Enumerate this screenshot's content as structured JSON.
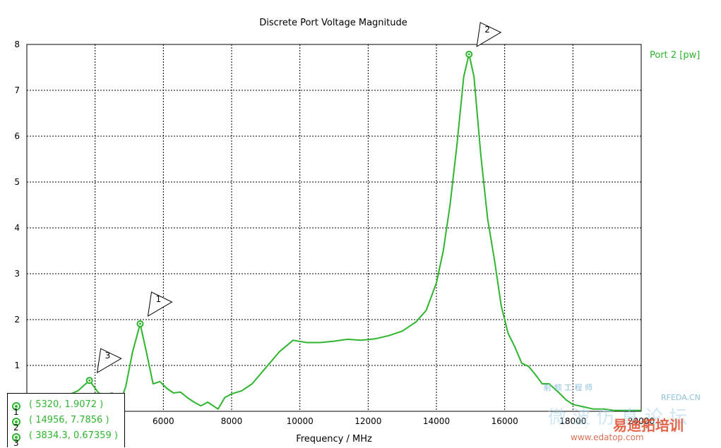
{
  "chart_data": {
    "type": "line",
    "title": "Discrete Port Voltage Magnitude",
    "xlabel": "Frequency / MHz",
    "ylabel": "",
    "xlim": [
      2000,
      20000
    ],
    "ylim": [
      0,
      8
    ],
    "x_ticks": [
      "4000",
      "6000",
      "8000",
      "10000",
      "12000",
      "14000",
      "16000",
      "18000",
      "20000"
    ],
    "y_ticks": [
      "1",
      "2",
      "3",
      "4",
      "5",
      "6",
      "7",
      "8"
    ],
    "grid": true,
    "legend_position": "top-right",
    "color": "#2fb52f",
    "series": [
      {
        "name": "Port 2 [pw]",
        "x": [
          3200,
          3500,
          3834.3,
          4100,
          4300,
          4500,
          4700,
          4900,
          5100,
          5320,
          5500,
          5700,
          5900,
          6100,
          6300,
          6500,
          6700,
          6900,
          7100,
          7300,
          7600,
          7800,
          8000,
          8300,
          8600,
          9000,
          9400,
          9800,
          10200,
          10600,
          11000,
          11400,
          11800,
          12200,
          12600,
          13000,
          13400,
          13700,
          14000,
          14200,
          14400,
          14600,
          14800,
          14956,
          15100,
          15300,
          15500,
          15700,
          15900,
          16100,
          16300,
          16500,
          16700,
          16900,
          17100,
          17300,
          17600,
          17800,
          18000,
          18300,
          18600,
          18900,
          19200,
          19500,
          19800,
          20000
        ],
        "y": [
          0.35,
          0.45,
          0.67359,
          0.4,
          0.35,
          0.4,
          0.1,
          0.55,
          1.3,
          1.9072,
          1.3,
          0.6,
          0.65,
          0.5,
          0.4,
          0.42,
          0.3,
          0.2,
          0.12,
          0.2,
          0.05,
          0.3,
          0.38,
          0.45,
          0.6,
          0.95,
          1.3,
          1.55,
          1.5,
          1.5,
          1.53,
          1.57,
          1.55,
          1.58,
          1.65,
          1.75,
          1.95,
          2.2,
          2.8,
          3.5,
          4.5,
          5.8,
          7.3,
          7.7856,
          7.3,
          5.6,
          4.2,
          3.3,
          2.3,
          1.7,
          1.4,
          1.05,
          0.98,
          0.8,
          0.6,
          0.6,
          0.4,
          0.25,
          0.15,
          0.1,
          0.05,
          0.05,
          0.02,
          0.02,
          0.02,
          0.02
        ]
      }
    ],
    "markers": [
      {
        "id": "1",
        "x": 5320,
        "y": 1.9072,
        "text": "( 5320, 1.9072 )"
      },
      {
        "id": "2",
        "x": 14956,
        "y": 7.7856,
        "text": "( 14956, 7.7856 )"
      },
      {
        "id": "3",
        "x": 3834.3,
        "y": 0.67359,
        "text": "( 3834.3, 0.67359 )"
      }
    ]
  },
  "watermark": {
    "site1": "RFEDA.CN",
    "site2": "易迪拓培训",
    "site3": "www.edatop.com",
    "cn1": "微 波 仿 真 论 坛",
    "small": "射 频 工 程 师"
  }
}
